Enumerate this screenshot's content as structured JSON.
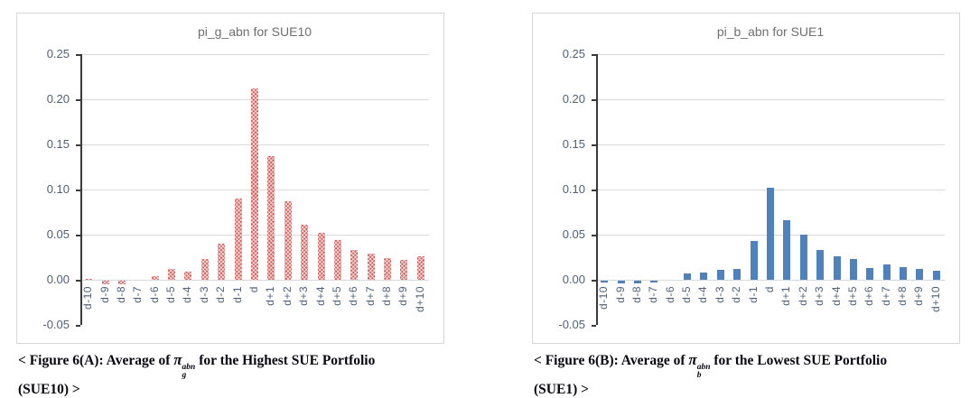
{
  "chart_data": [
    {
      "type": "bar",
      "title": "pi_g_abn for SUE10",
      "categories": [
        "d-10",
        "d-9",
        "d-8",
        "d-7",
        "d-6",
        "d-5",
        "d-4",
        "d-3",
        "d-2",
        "d-1",
        "d",
        "d+1",
        "d+2",
        "d+3",
        "d+4",
        "d+5",
        "d+6",
        "d+7",
        "d+8",
        "d+9",
        "d+10"
      ],
      "values": [
        0.001,
        -0.004,
        -0.004,
        0.0,
        0.004,
        0.012,
        0.009,
        0.023,
        0.04,
        0.09,
        0.212,
        0.137,
        0.087,
        0.061,
        0.052,
        0.044,
        0.033,
        0.029,
        0.024,
        0.022,
        0.026
      ],
      "xlabel": "",
      "ylabel": "",
      "ylim": [
        -0.05,
        0.25
      ],
      "ytick_step": 0.05,
      "ytick_labels": [
        "0.25",
        "0.20",
        "0.15",
        "0.10",
        "0.05",
        "0.00",
        "-0.05"
      ],
      "grid": "horizontal",
      "legend": "none",
      "bar_style": "hatched",
      "bar_color": "#c9504c",
      "bar_color_base": "#d4635f",
      "caption": {
        "prefix": "< Figure 6(A): Average of ",
        "pi_symbol": "π",
        "pi_sup": "abn",
        "pi_sub": "g",
        "suffix": " for the Highest SUE Portfolio",
        "line2": "(SUE10) >"
      }
    },
    {
      "type": "bar",
      "title": "pi_b_abn for SUE1",
      "categories": [
        "d-10",
        "d-9",
        "d-8",
        "d-7",
        "d-6",
        "d-5",
        "d-4",
        "d-3",
        "d-2",
        "d-1",
        "d",
        "d+1",
        "d+2",
        "d+3",
        "d+4",
        "d+5",
        "d+6",
        "d+7",
        "d+8",
        "d+9",
        "d+10"
      ],
      "values": [
        -0.002,
        -0.003,
        -0.003,
        -0.002,
        0.0,
        0.007,
        0.008,
        0.011,
        0.012,
        0.043,
        0.102,
        0.066,
        0.05,
        0.033,
        0.026,
        0.023,
        0.013,
        0.017,
        0.014,
        0.012,
        0.01
      ],
      "xlabel": "",
      "ylabel": "",
      "ylim": [
        -0.05,
        0.25
      ],
      "ytick_step": 0.05,
      "ytick_labels": [
        "0.25",
        "0.20",
        "0.15",
        "0.10",
        "0.05",
        "0.00",
        "-0.05"
      ],
      "grid": "horizontal",
      "legend": "none",
      "bar_style": "solid",
      "bar_color": "#4f81bd",
      "bar_color_base": "#4f81bd",
      "caption": {
        "prefix": "< Figure 6(B): Average of ",
        "pi_symbol": "π",
        "pi_sup": "abn",
        "pi_sub": "b",
        "suffix": " for the Lowest SUE Portfolio",
        "line2": "(SUE1) >"
      }
    }
  ]
}
